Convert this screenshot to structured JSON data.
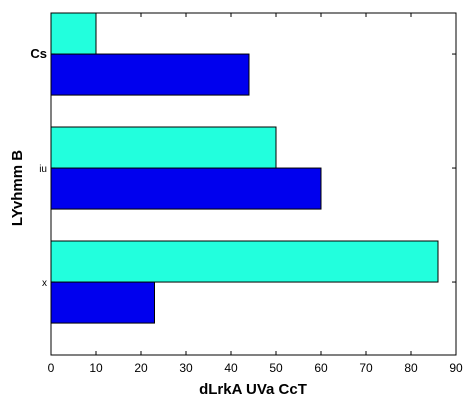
{
  "chart_data": {
    "type": "bar",
    "orientation": "horizontal",
    "title": "",
    "xlabel": "dLrkA  UVa CcT",
    "ylabel": "LYvhmm B",
    "categories": [
      "Cs",
      "iu",
      "x"
    ],
    "series": [
      {
        "color": "#0000ee",
        "values": [
          44,
          60,
          23
        ]
      },
      {
        "color": "#22ffdd",
        "values": [
          10,
          50,
          86
        ]
      }
    ],
    "xlim": [
      0,
      90
    ],
    "xticks": [
      0,
      10,
      20,
      30,
      40,
      50,
      60,
      70,
      80,
      90
    ],
    "grid": false,
    "legend": "none"
  }
}
